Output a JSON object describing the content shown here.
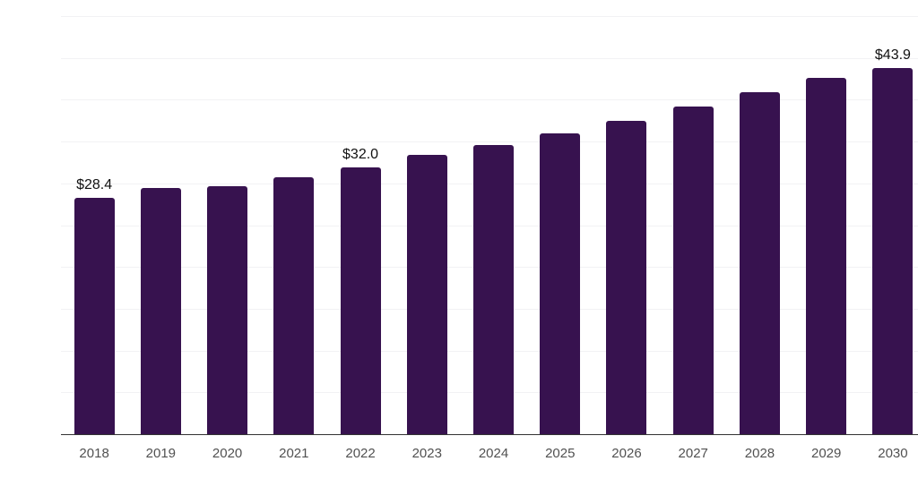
{
  "chart_data": {
    "type": "bar",
    "categories": [
      "2018",
      "2019",
      "2020",
      "2021",
      "2022",
      "2023",
      "2024",
      "2025",
      "2026",
      "2027",
      "2028",
      "2029",
      "2030"
    ],
    "values": [
      28.4,
      29.6,
      29.8,
      30.8,
      32.0,
      33.5,
      34.7,
      36.1,
      37.6,
      39.3,
      41.0,
      42.7,
      43.9
    ],
    "value_labels": [
      "$28.4",
      "",
      "",
      "",
      "$32.0",
      "",
      "",
      "",
      "",
      "",
      "",
      "",
      "$43.9"
    ],
    "title": "",
    "xlabel": "",
    "ylabel": "",
    "ylim": [
      0,
      50
    ],
    "gridline_step": 5,
    "grid": "horizontal",
    "legend": "none",
    "y_axis_labels_visible": false,
    "bar_color": "#37124F",
    "axis_color": "#333333",
    "gridline_color": "#F2F2F4",
    "tick_label_color": "#515151",
    "value_label_color": "#111111",
    "background_color": "#FFFFFF"
  }
}
